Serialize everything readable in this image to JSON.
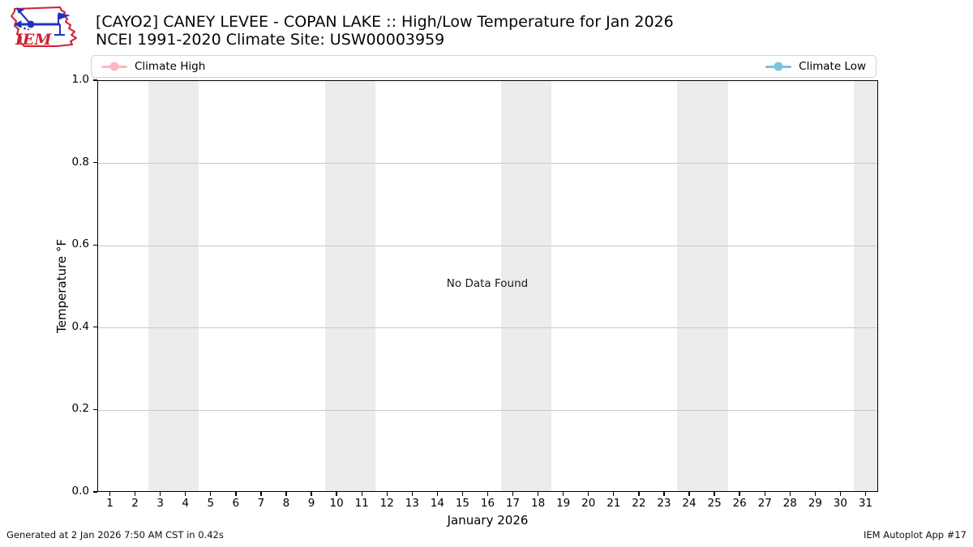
{
  "header": {
    "logo_text": "IEM",
    "title_line1": "[CAYO2] CANEY LEVEE - COPAN LAKE :: High/Low Temperature for Jan 2026",
    "title_line2": "NCEI 1991-2020 Climate Site: USW00003959"
  },
  "legend": {
    "entries": [
      {
        "label": "Climate High",
        "color": "#ffb6c1"
      },
      {
        "label": "Climate Low",
        "color": "#79c3e1"
      }
    ]
  },
  "chart_data": {
    "type": "line",
    "title": "[CAYO2] CANEY LEVEE - COPAN LAKE :: High/Low Temperature for Jan 2026",
    "subtitle": "NCEI 1991-2020 Climate Site: USW00003959",
    "xlabel": "January 2026",
    "ylabel": "Temperature °F",
    "xlim": [
      0.5,
      31.5
    ],
    "ylim": [
      0.0,
      1.0
    ],
    "xticks": [
      1,
      2,
      3,
      4,
      5,
      6,
      7,
      8,
      9,
      10,
      11,
      12,
      13,
      14,
      15,
      16,
      17,
      18,
      19,
      20,
      21,
      22,
      23,
      24,
      25,
      26,
      27,
      28,
      29,
      30,
      31
    ],
    "yticks": [
      0.0,
      0.2,
      0.4,
      0.6,
      0.8,
      1.0
    ],
    "ytick_labels": [
      "0.0",
      "0.2",
      "0.4",
      "0.6",
      "0.8",
      "1.0"
    ],
    "grid": true,
    "grid_color": "#c9c9c9",
    "band_color": "#ececec",
    "weekend_bands": [
      [
        2.5,
        4.5
      ],
      [
        9.5,
        11.5
      ],
      [
        16.5,
        18.5
      ],
      [
        23.5,
        25.5
      ],
      [
        30.5,
        31.5
      ]
    ],
    "legend_position": "top",
    "series": [
      {
        "name": "Climate High",
        "color": "#ffb6c1",
        "values": []
      },
      {
        "name": "Climate Low",
        "color": "#79c3e1",
        "values": []
      }
    ],
    "no_data_text": "No Data Found"
  },
  "footer": {
    "left": "Generated at 2 Jan 2026 7:50 AM CST in 0.42s",
    "right": "IEM Autoplot App #17"
  },
  "colors": {
    "logo_red": "#cf2030",
    "logo_blue": "#2233bb",
    "axis": "#000000"
  }
}
